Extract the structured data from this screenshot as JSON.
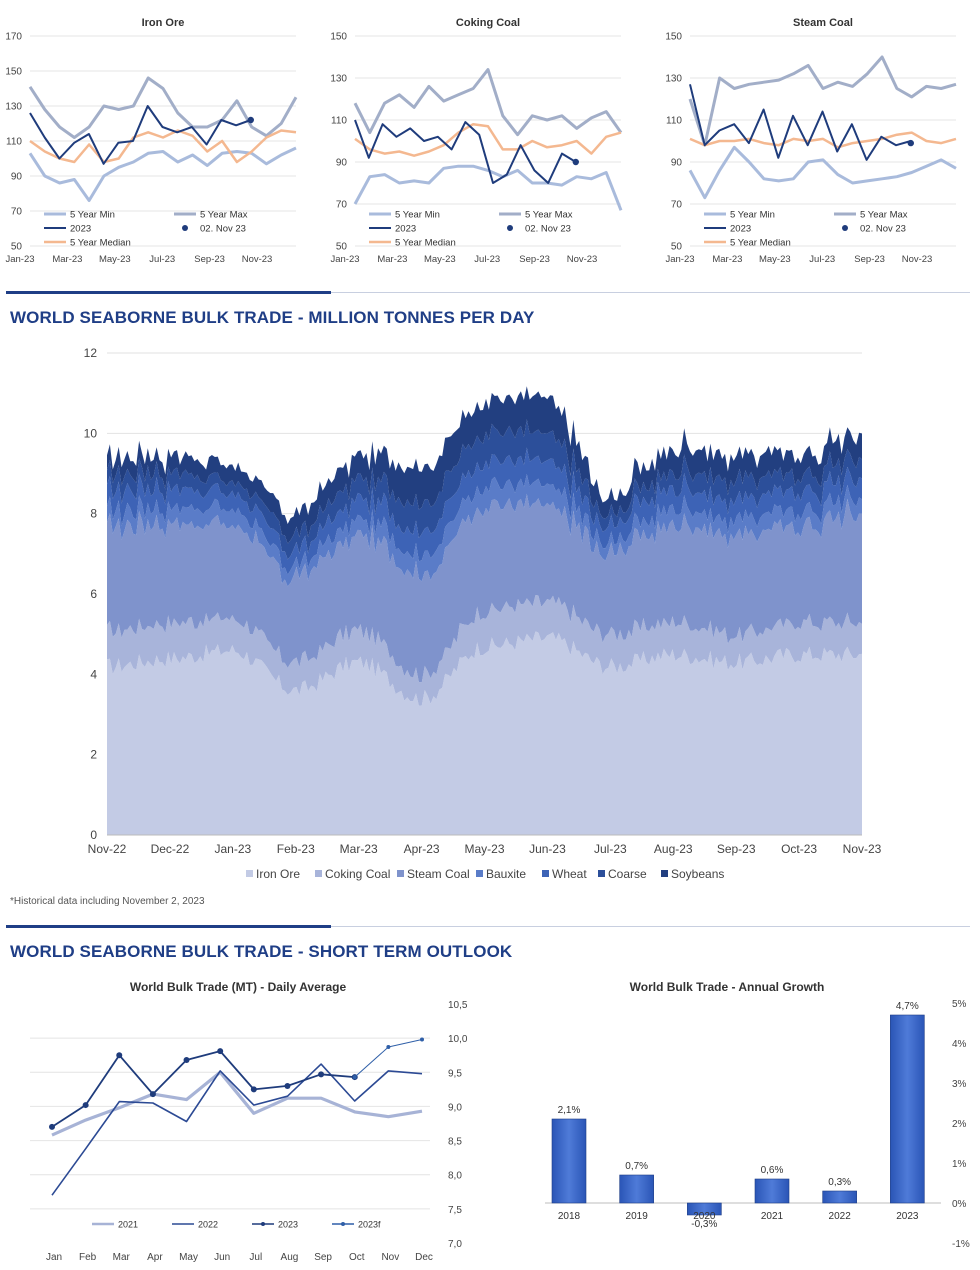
{
  "colors": {
    "min": "#a9bbdc",
    "max": "#a2aec8",
    "y2023": "#1f3c7c",
    "median": "#f4b890",
    "rule": "#1f3e86",
    "title": "#1f3e86",
    "stack": [
      "#c3cbe5",
      "#a8b4da",
      "#7f93cc",
      "#5a7cc8",
      "#3d63b6",
      "#2c4f9a",
      "#223f80"
    ]
  },
  "top_charts": [
    {
      "title": "Iron Ore",
      "ylim": [
        50,
        170
      ],
      "yticks": [
        50,
        70,
        90,
        110,
        130,
        150,
        170
      ],
      "xticks": [
        "Jan-23",
        "Mar-23",
        "May-23",
        "Jul-23",
        "Sep-23",
        "Nov-23"
      ],
      "legend": [
        "5 Year Min",
        "5 Year Max",
        "2023",
        "02. Nov 23",
        "5 Year Median"
      ],
      "min": [
        103,
        90,
        86,
        88,
        76,
        90,
        95,
        98,
        103,
        104,
        98,
        102,
        96,
        103,
        104,
        103,
        97,
        102,
        106
      ],
      "max": [
        141,
        128,
        118,
        112,
        118,
        130,
        128,
        130,
        146,
        140,
        126,
        118,
        118,
        122,
        133,
        118,
        113,
        120,
        135
      ],
      "median": [
        110,
        104,
        100,
        98,
        108,
        98,
        100,
        112,
        115,
        112,
        116,
        113,
        104,
        110,
        98,
        104,
        112,
        116,
        115
      ],
      "y2023": [
        126,
        112,
        100,
        109,
        114,
        97,
        109,
        110,
        130,
        118,
        115,
        118,
        108,
        122,
        119,
        122
      ],
      "marker": 122
    },
    {
      "title": "Coking Coal",
      "ylim": [
        50,
        150
      ],
      "yticks": [
        50,
        70,
        90,
        110,
        130,
        150
      ],
      "xticks": [
        "Jan-23",
        "Mar-23",
        "May-23",
        "Jul-23",
        "Sep-23",
        "Nov-23"
      ],
      "legend": [
        "5 Year Min",
        "5 Year Max",
        "2023",
        "02. Nov 23",
        "5 Year Median"
      ],
      "min": [
        70,
        83,
        84,
        80,
        81,
        80,
        87,
        88,
        88,
        86,
        83,
        86,
        80,
        80,
        79,
        83,
        82,
        85,
        67
      ],
      "max": [
        118,
        104,
        118,
        122,
        116,
        126,
        119,
        122,
        125,
        134,
        112,
        103,
        112,
        110,
        112,
        106,
        111,
        114,
        104
      ],
      "median": [
        101,
        96,
        94,
        95,
        93,
        95,
        98,
        104,
        108,
        107,
        96,
        96,
        100,
        97,
        98,
        100,
        94,
        102,
        104
      ],
      "y2023": [
        110,
        92,
        108,
        102,
        106,
        100,
        102,
        96,
        109,
        103,
        80,
        84,
        98,
        86,
        80,
        94,
        90
      ],
      "marker": 90
    },
    {
      "title": "Steam Coal",
      "ylim": [
        50,
        150
      ],
      "yticks": [
        50,
        70,
        90,
        110,
        130,
        150
      ],
      "xticks": [
        "Jan-23",
        "Mar-23",
        "May-23",
        "Jul-23",
        "Sep-23",
        "Nov-23"
      ],
      "legend": [
        "5 Year Min",
        "5 Year Max",
        "2023",
        "02. Nov 23",
        "5 Year Median"
      ],
      "min": [
        86,
        73,
        86,
        97,
        90,
        82,
        81,
        82,
        90,
        91,
        84,
        80,
        81,
        82,
        83,
        85,
        88,
        91,
        87
      ],
      "max": [
        120,
        98,
        130,
        125,
        127,
        128,
        129,
        132,
        136,
        125,
        128,
        126,
        132,
        140,
        125,
        121,
        126,
        125,
        127
      ],
      "median": [
        101,
        98,
        100,
        100,
        101,
        99,
        98,
        101,
        100,
        101,
        97,
        99,
        100,
        101,
        103,
        104,
        100,
        99,
        101
      ],
      "y2023": [
        127,
        98,
        105,
        108,
        99,
        115,
        92,
        112,
        98,
        114,
        95,
        108,
        91,
        102,
        98,
        100
      ],
      "marker": 99
    }
  ],
  "stack_section": {
    "title": "WORLD SEABORNE BULK TRADE - MILLION TONNES PER DAY",
    "footnote": "*Historical data including November 2, 2023"
  },
  "outlook_section": {
    "title": "WORLD SEABORNE BULK TRADE - SHORT TERM OUTLOOK"
  },
  "chart_data": [
    {
      "type": "area",
      "stacked": true,
      "title": "WORLD SEABORNE BULK TRADE - MILLION TONNES PER DAY",
      "ylim": [
        0,
        12
      ],
      "yticks": [
        0,
        2,
        4,
        6,
        8,
        10,
        12
      ],
      "categories": [
        "Nov-22",
        "Dec-22",
        "Jan-23",
        "Feb-23",
        "Mar-23",
        "Apr-23",
        "May-23",
        "Jun-23",
        "Jul-23",
        "Aug-23",
        "Sep-23",
        "Oct-23",
        "Nov-23"
      ],
      "series": [
        {
          "name": "Iron Ore",
          "values": [
            4.2,
            4.4,
            4.6,
            3.6,
            4.3,
            3.4,
            4.7,
            4.9,
            4.2,
            4.5,
            4.3,
            4.5,
            4.5
          ]
        },
        {
          "name": "Coking Coal",
          "values": [
            0.9,
            0.9,
            0.8,
            0.7,
            0.8,
            0.6,
            0.9,
            0.9,
            0.8,
            0.8,
            0.7,
            0.8,
            0.8
          ]
        },
        {
          "name": "Steam Coal",
          "values": [
            2.6,
            2.5,
            2.3,
            2.1,
            2.4,
            2.5,
            2.6,
            2.4,
            2.0,
            2.4,
            2.5,
            2.4,
            2.7
          ]
        },
        {
          "name": "Bauxite",
          "values": [
            0.4,
            0.4,
            0.4,
            0.3,
            0.4,
            0.5,
            0.5,
            0.5,
            0.3,
            0.4,
            0.4,
            0.4,
            0.4
          ]
        },
        {
          "name": "Wheat",
          "values": [
            0.5,
            0.5,
            0.4,
            0.4,
            0.5,
            0.6,
            0.6,
            0.6,
            0.4,
            0.5,
            0.5,
            0.5,
            0.5
          ]
        },
        {
          "name": "Coarse",
          "values": [
            0.4,
            0.4,
            0.3,
            0.4,
            0.5,
            0.7,
            0.7,
            0.7,
            0.3,
            0.4,
            0.5,
            0.4,
            0.5
          ]
        },
        {
          "name": "Soybeans",
          "values": [
            0.4,
            0.4,
            0.4,
            0.5,
            0.6,
            0.9,
            0.8,
            0.9,
            0.4,
            0.6,
            0.6,
            0.5,
            0.6
          ]
        }
      ]
    },
    {
      "type": "line",
      "title": "World Bulk Trade (MT) - Daily Average",
      "ylim": [
        7.0,
        10.5
      ],
      "yticks": [
        "7,0",
        "7,5",
        "8,0",
        "8,5",
        "9,0",
        "9,5",
        "10,0",
        "10,5"
      ],
      "categories": [
        "Jan",
        "Feb",
        "Mar",
        "Apr",
        "May",
        "Jun",
        "Jul",
        "Aug",
        "Sep",
        "Oct",
        "Nov",
        "Dec"
      ],
      "series": [
        {
          "name": "2021",
          "values": [
            8.58,
            8.8,
            8.98,
            9.18,
            9.1,
            9.5,
            8.9,
            9.12,
            9.12,
            8.92,
            8.85,
            8.93
          ]
        },
        {
          "name": "2022",
          "values": [
            7.7,
            8.38,
            9.07,
            9.05,
            8.78,
            9.52,
            9.02,
            9.15,
            9.62,
            9.08,
            9.52,
            9.48
          ]
        },
        {
          "name": "2023",
          "values": [
            8.7,
            9.02,
            9.75,
            9.18,
            9.68,
            9.81,
            9.25,
            9.3,
            9.47,
            9.43,
            null,
            null
          ]
        },
        {
          "name": "2023f",
          "values": [
            null,
            null,
            null,
            null,
            null,
            null,
            null,
            null,
            null,
            9.43,
            9.87,
            9.98
          ]
        }
      ]
    },
    {
      "type": "bar",
      "title": "World Bulk Trade - Annual Growth",
      "categories": [
        "2018",
        "2019",
        "2020",
        "2021",
        "2022",
        "2023"
      ],
      "values": [
        2.1,
        0.7,
        -0.3,
        0.6,
        0.3,
        4.7
      ],
      "labels": [
        "2,1%",
        "0,7%",
        "-0,3%",
        "0,6%",
        "0,3%",
        "4,7%"
      ],
      "ylim": [
        -1,
        5
      ],
      "yticks": [
        "-1%",
        "0%",
        "1%",
        "2%",
        "3%",
        "4%",
        "5%"
      ]
    }
  ]
}
